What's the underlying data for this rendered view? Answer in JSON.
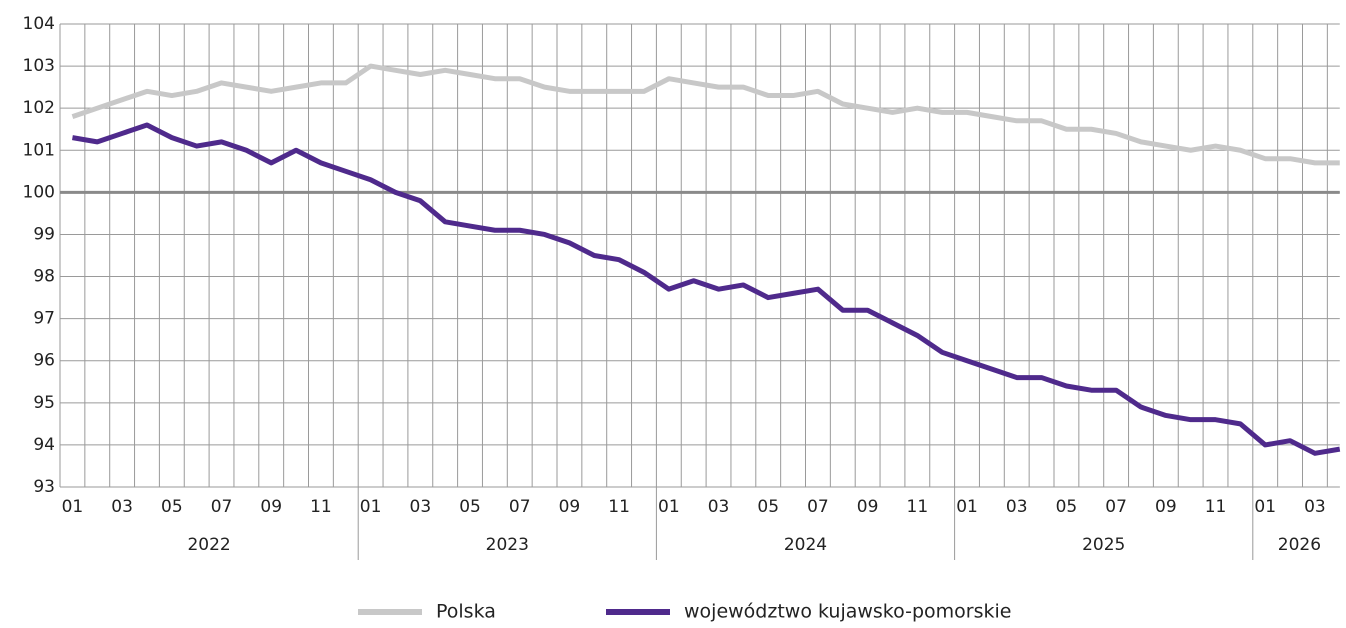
{
  "chart_data": {
    "type": "line",
    "categories": [
      "01",
      null,
      "03",
      null,
      "05",
      null,
      "07",
      null,
      "09",
      null,
      "11",
      null,
      "01",
      null,
      "03",
      null,
      "05",
      null,
      "07",
      null,
      "09",
      null,
      "11",
      null,
      "01",
      null,
      "03",
      null,
      "05",
      null,
      "07",
      null,
      "09",
      null,
      "11",
      null,
      "01",
      null,
      "03",
      null,
      "05",
      null,
      "07",
      null,
      "09",
      null,
      "11",
      null,
      "01",
      null,
      "03",
      null
    ],
    "years": [
      "2022",
      "2023",
      "2024",
      "2025",
      "2026"
    ],
    "series": [
      {
        "name": "Polska",
        "color": "#c8c8c8",
        "values": [
          101.8,
          102.0,
          102.2,
          102.4,
          102.3,
          102.4,
          102.6,
          102.5,
          102.4,
          102.5,
          102.6,
          102.6,
          103.0,
          102.9,
          102.8,
          102.9,
          102.8,
          102.7,
          102.7,
          102.5,
          102.4,
          102.4,
          102.4,
          102.4,
          102.7,
          102.6,
          102.5,
          102.5,
          102.3,
          102.3,
          102.4,
          102.1,
          102.0,
          101.9,
          102.0,
          101.9,
          101.9,
          101.8,
          101.7,
          101.7,
          101.5,
          101.5,
          101.4,
          101.2,
          101.1,
          101.0,
          101.1,
          101.0,
          100.8,
          100.8,
          100.7,
          100.7
        ]
      },
      {
        "name": "województwo kujawsko-pomorskie",
        "color": "#4f2a8c",
        "values": [
          101.3,
          101.2,
          101.4,
          101.6,
          101.3,
          101.1,
          101.2,
          101.0,
          100.7,
          101.0,
          100.7,
          100.5,
          100.3,
          100.0,
          99.8,
          99.3,
          99.2,
          99.1,
          99.1,
          99.0,
          98.8,
          98.5,
          98.4,
          98.1,
          97.7,
          97.9,
          97.7,
          97.8,
          97.5,
          97.6,
          97.7,
          97.2,
          97.2,
          96.9,
          96.6,
          96.2,
          96.0,
          95.8,
          95.6,
          95.6,
          95.4,
          95.3,
          95.3,
          94.9,
          94.7,
          94.6,
          94.6,
          94.5,
          94.0,
          94.1,
          93.8,
          93.9
        ]
      }
    ],
    "ylim": [
      93,
      104
    ],
    "yticks": [
      93,
      94,
      95,
      96,
      97,
      98,
      99,
      100,
      101,
      102,
      103,
      104
    ],
    "baseline": 100,
    "grid": true,
    "legend": "bottom"
  }
}
